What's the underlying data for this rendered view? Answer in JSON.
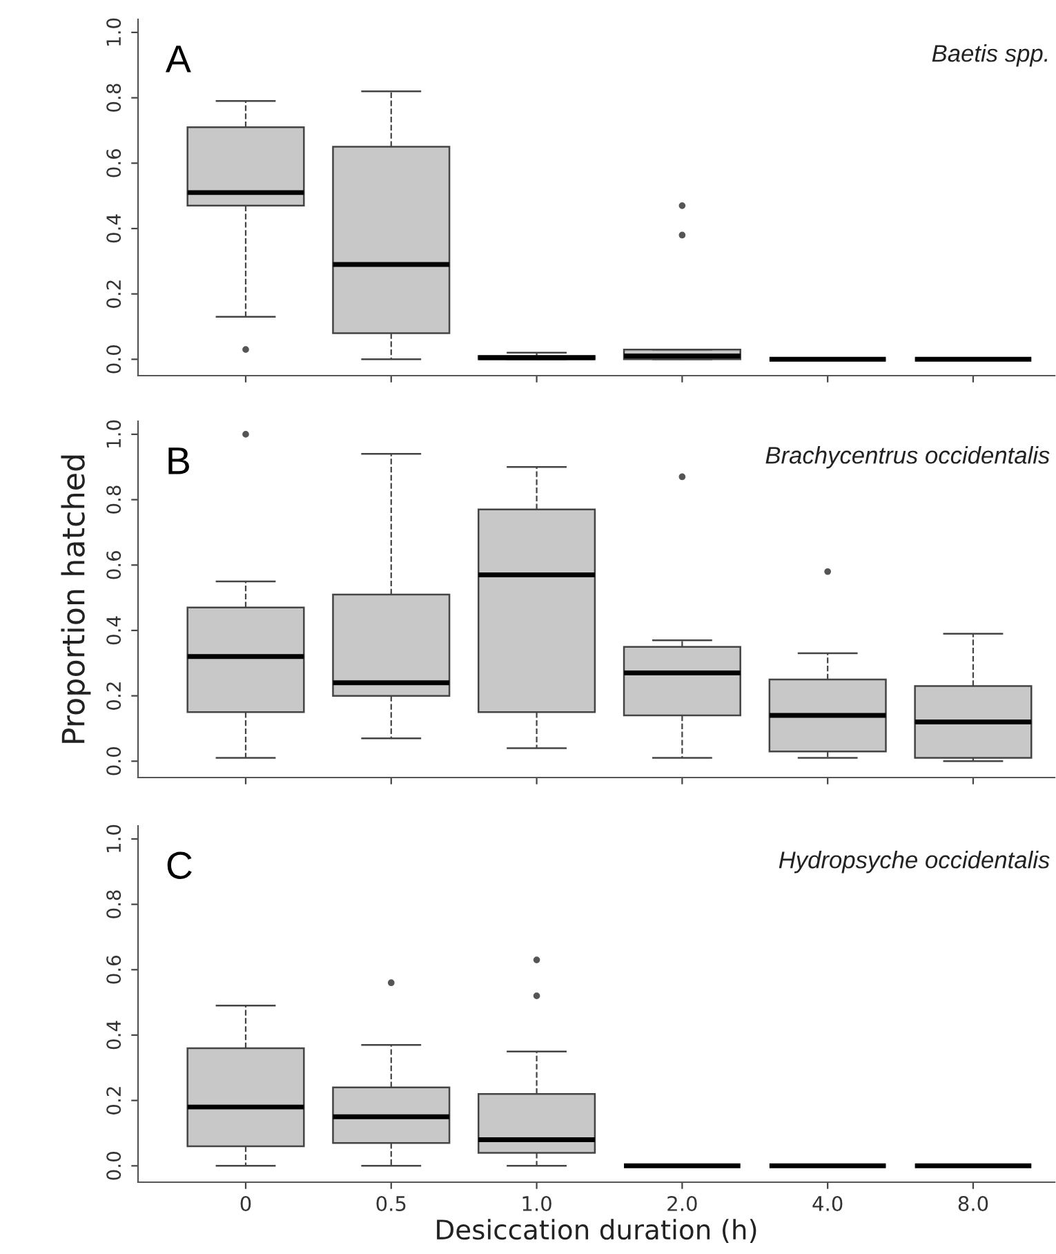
{
  "chart_data": [
    {
      "type": "box",
      "annotations": [
        "A",
        "Baetis spp."
      ],
      "categories": [
        "0",
        "0.5",
        "1.0",
        "2.0",
        "4.0",
        "8.0"
      ],
      "color": "#c8c8c8",
      "ylim": [
        -0.05,
        1.04
      ],
      "yticks": [
        {
          "value": 0,
          "label": "0.0"
        },
        {
          "value": 0.2,
          "label": "0.2"
        },
        {
          "value": 0.4,
          "label": "0.4"
        },
        {
          "value": 0.6,
          "label": "0.6"
        },
        {
          "value": 0.8,
          "label": "0.8"
        },
        {
          "value": 1,
          "label": "1.0"
        }
      ],
      "tick_labels": "y",
      "boxes": [
        {
          "low": 0.13,
          "q1": 0.47,
          "median": 0.51,
          "q3": 0.71,
          "high": 0.79,
          "outliers": [
            0.03
          ]
        },
        {
          "low": 0.0,
          "q1": 0.08,
          "median": 0.29,
          "q3": 0.65,
          "high": 0.82
        },
        {
          "low": 0.0,
          "q1": 0.0,
          "median": 0.005,
          "q3": 0.01,
          "high": 0.02
        },
        {
          "low": 0.0,
          "q1": 0.0,
          "median": 0.01,
          "q3": 0.03,
          "high": 0.03,
          "outliers": [
            0.38,
            0.47
          ]
        },
        {
          "low": 0.0,
          "q1": 0.0,
          "median": 0.0,
          "q3": 0.0,
          "high": 0.0
        },
        {
          "low": 0.0,
          "q1": 0.0,
          "median": 0.0,
          "q3": 0.0,
          "high": 0.0
        }
      ]
    },
    {
      "type": "box",
      "annotations": [
        "B",
        "Brachycentrus occidentalis"
      ],
      "ylabel": "Proportion hatched",
      "categories": [
        "0",
        "0.5",
        "1.0",
        "2.0",
        "4.0",
        "8.0"
      ],
      "color": "#c8c8c8",
      "ylim": [
        -0.05,
        1.04
      ],
      "yticks": [
        {
          "value": 0,
          "label": "0.0"
        },
        {
          "value": 0.2,
          "label": "0.2"
        },
        {
          "value": 0.4,
          "label": "0.4"
        },
        {
          "value": 0.6,
          "label": "0.6"
        },
        {
          "value": 0.8,
          "label": "0.8"
        },
        {
          "value": 1,
          "label": "1.0"
        }
      ],
      "tick_labels": "y",
      "boxes": [
        {
          "low": 0.01,
          "q1": 0.15,
          "median": 0.32,
          "q3": 0.47,
          "high": 0.55,
          "outliers": [
            1.0
          ]
        },
        {
          "low": 0.07,
          "q1": 0.2,
          "median": 0.24,
          "q3": 0.51,
          "high": 0.94
        },
        {
          "low": 0.04,
          "q1": 0.15,
          "median": 0.57,
          "q3": 0.77,
          "high": 0.9
        },
        {
          "low": 0.01,
          "q1": 0.14,
          "median": 0.27,
          "q3": 0.35,
          "high": 0.37,
          "outliers": [
            0.87
          ]
        },
        {
          "low": 0.01,
          "q1": 0.03,
          "median": 0.14,
          "q3": 0.25,
          "high": 0.33,
          "outliers": [
            0.58
          ]
        },
        {
          "low": 0.0,
          "q1": 0.01,
          "median": 0.12,
          "q3": 0.23,
          "high": 0.39
        }
      ]
    },
    {
      "type": "box",
      "annotations": [
        "C",
        "Hydropsyche occidentalis"
      ],
      "xlabel": "Desiccation duration (h)",
      "categories": [
        "0",
        "0.5",
        "1.0",
        "2.0",
        "4.0",
        "8.0"
      ],
      "color": "#c8c8c8",
      "ylim": [
        -0.05,
        1.04
      ],
      "yticks": [
        {
          "value": 0,
          "label": "0.0"
        },
        {
          "value": 0.2,
          "label": "0.2"
        },
        {
          "value": 0.4,
          "label": "0.4"
        },
        {
          "value": 0.6,
          "label": "0.6"
        },
        {
          "value": 0.8,
          "label": "0.8"
        },
        {
          "value": 1,
          "label": "1.0"
        }
      ],
      "boxes": [
        {
          "low": 0.0,
          "q1": 0.06,
          "median": 0.18,
          "q3": 0.36,
          "high": 0.49
        },
        {
          "low": 0.0,
          "q1": 0.07,
          "median": 0.15,
          "q3": 0.24,
          "high": 0.37,
          "outliers": [
            0.56
          ]
        },
        {
          "low": 0.0,
          "q1": 0.04,
          "median": 0.08,
          "q3": 0.22,
          "high": 0.35,
          "outliers": [
            0.52,
            0.63
          ]
        },
        {
          "low": 0.0,
          "q1": 0.0,
          "median": 0.0,
          "q3": 0.0,
          "high": 0.0
        },
        {
          "low": 0.0,
          "q1": 0.0,
          "median": 0.0,
          "q3": 0.0,
          "high": 0.0
        },
        {
          "low": 0.0,
          "q1": 0.0,
          "median": 0.0,
          "q3": 0.0,
          "high": 0.0
        }
      ]
    }
  ]
}
